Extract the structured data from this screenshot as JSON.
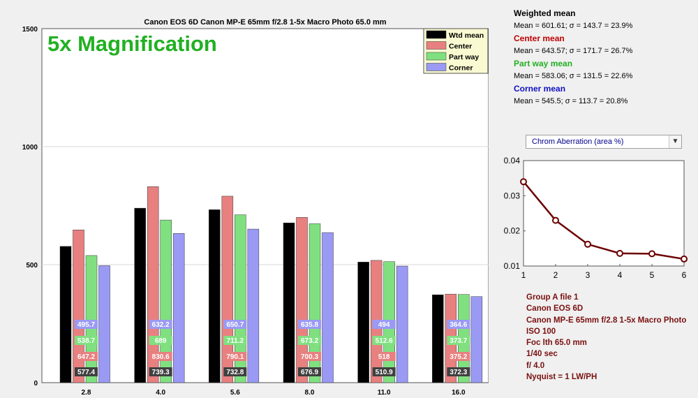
{
  "chart_data": [
    {
      "type": "bar",
      "title": "Canon EOS 6D  Canon MP-E 65mm f/2.8 1-5x Macro Photo  65.0 mm",
      "annotation": "5x Magnification",
      "categories": [
        "2.8",
        "4.0",
        "5.6",
        "8.0",
        "11.0",
        "16.0"
      ],
      "ylim": [
        0,
        1500
      ],
      "yticks": [
        "0",
        "500",
        "1000",
        "1500"
      ],
      "grid": true,
      "legend_position": "top-right",
      "series": [
        {
          "name": "Wtd mean",
          "color": "#000000",
          "values": [
            577.4,
            739.3,
            732.8,
            676.9,
            510.9,
            372.3
          ],
          "labels": [
            "577.4",
            "739.3",
            "732.8",
            "676.9",
            "510.9",
            "372.3"
          ]
        },
        {
          "name": "Center",
          "color": "#e88080",
          "values": [
            647.2,
            830.6,
            790.1,
            700.3,
            518,
            375.2
          ],
          "labels": [
            "647.2",
            "830.6",
            "790.1",
            "700.3",
            "518",
            "375.2"
          ]
        },
        {
          "name": "Part way",
          "color": "#80e080",
          "values": [
            538.7,
            689,
            711.2,
            673.2,
            512.6,
            373.7
          ],
          "labels": [
            "538.7",
            "689",
            "711.2",
            "673.2",
            "512.6",
            "373.7"
          ]
        },
        {
          "name": "Corner",
          "color": "#9a9af5",
          "values": [
            495.7,
            632.2,
            650.7,
            635.8,
            494,
            364.6
          ],
          "labels": [
            "495.7",
            "632.2",
            "650.7",
            "635.8",
            "494",
            "364.6"
          ]
        }
      ]
    },
    {
      "type": "line",
      "x": [
        1,
        2,
        3,
        4,
        5,
        6
      ],
      "y": [
        0.034,
        0.023,
        0.0162,
        0.0136,
        0.0135,
        0.012
      ],
      "xlim": [
        1,
        6
      ],
      "ylim": [
        0.01,
        0.04
      ],
      "xticks": [
        "1",
        "2",
        "3",
        "4",
        "5",
        "6"
      ],
      "yticks": [
        "0.01",
        "0.02",
        "0.03",
        "0.04"
      ],
      "color": "#6b0000",
      "grid": false
    }
  ],
  "stats": [
    {
      "title": "Weighted mean",
      "color": "#000000",
      "text": "Mean = 601.61;  σ = 143.7 = 23.9%"
    },
    {
      "title": "Center mean",
      "color": "#c00000",
      "text": "Mean = 643.57;  σ = 171.7 = 26.7%"
    },
    {
      "title": "Part way mean",
      "color": "#22b022",
      "text": "Mean = 583.06;  σ = 131.5 = 22.6%"
    },
    {
      "title": "Corner mean",
      "color": "#1010c0",
      "text": "Mean = 545.5;  σ = 113.7 = 20.8%"
    }
  ],
  "metric_select": {
    "value": "Chrom Aberration (area %)",
    "arrow": "chevron-down-icon"
  },
  "info_lines": [
    "Group A file 1",
    "Canon EOS 6D",
    "Canon MP-E 65mm f/2.8 1-5x Macro Photo",
    "ISO  100",
    "Foc lth  65.0 mm",
    "1/40  sec",
    "f/  4.0",
    "Nyquist = 1 LW/PH"
  ]
}
